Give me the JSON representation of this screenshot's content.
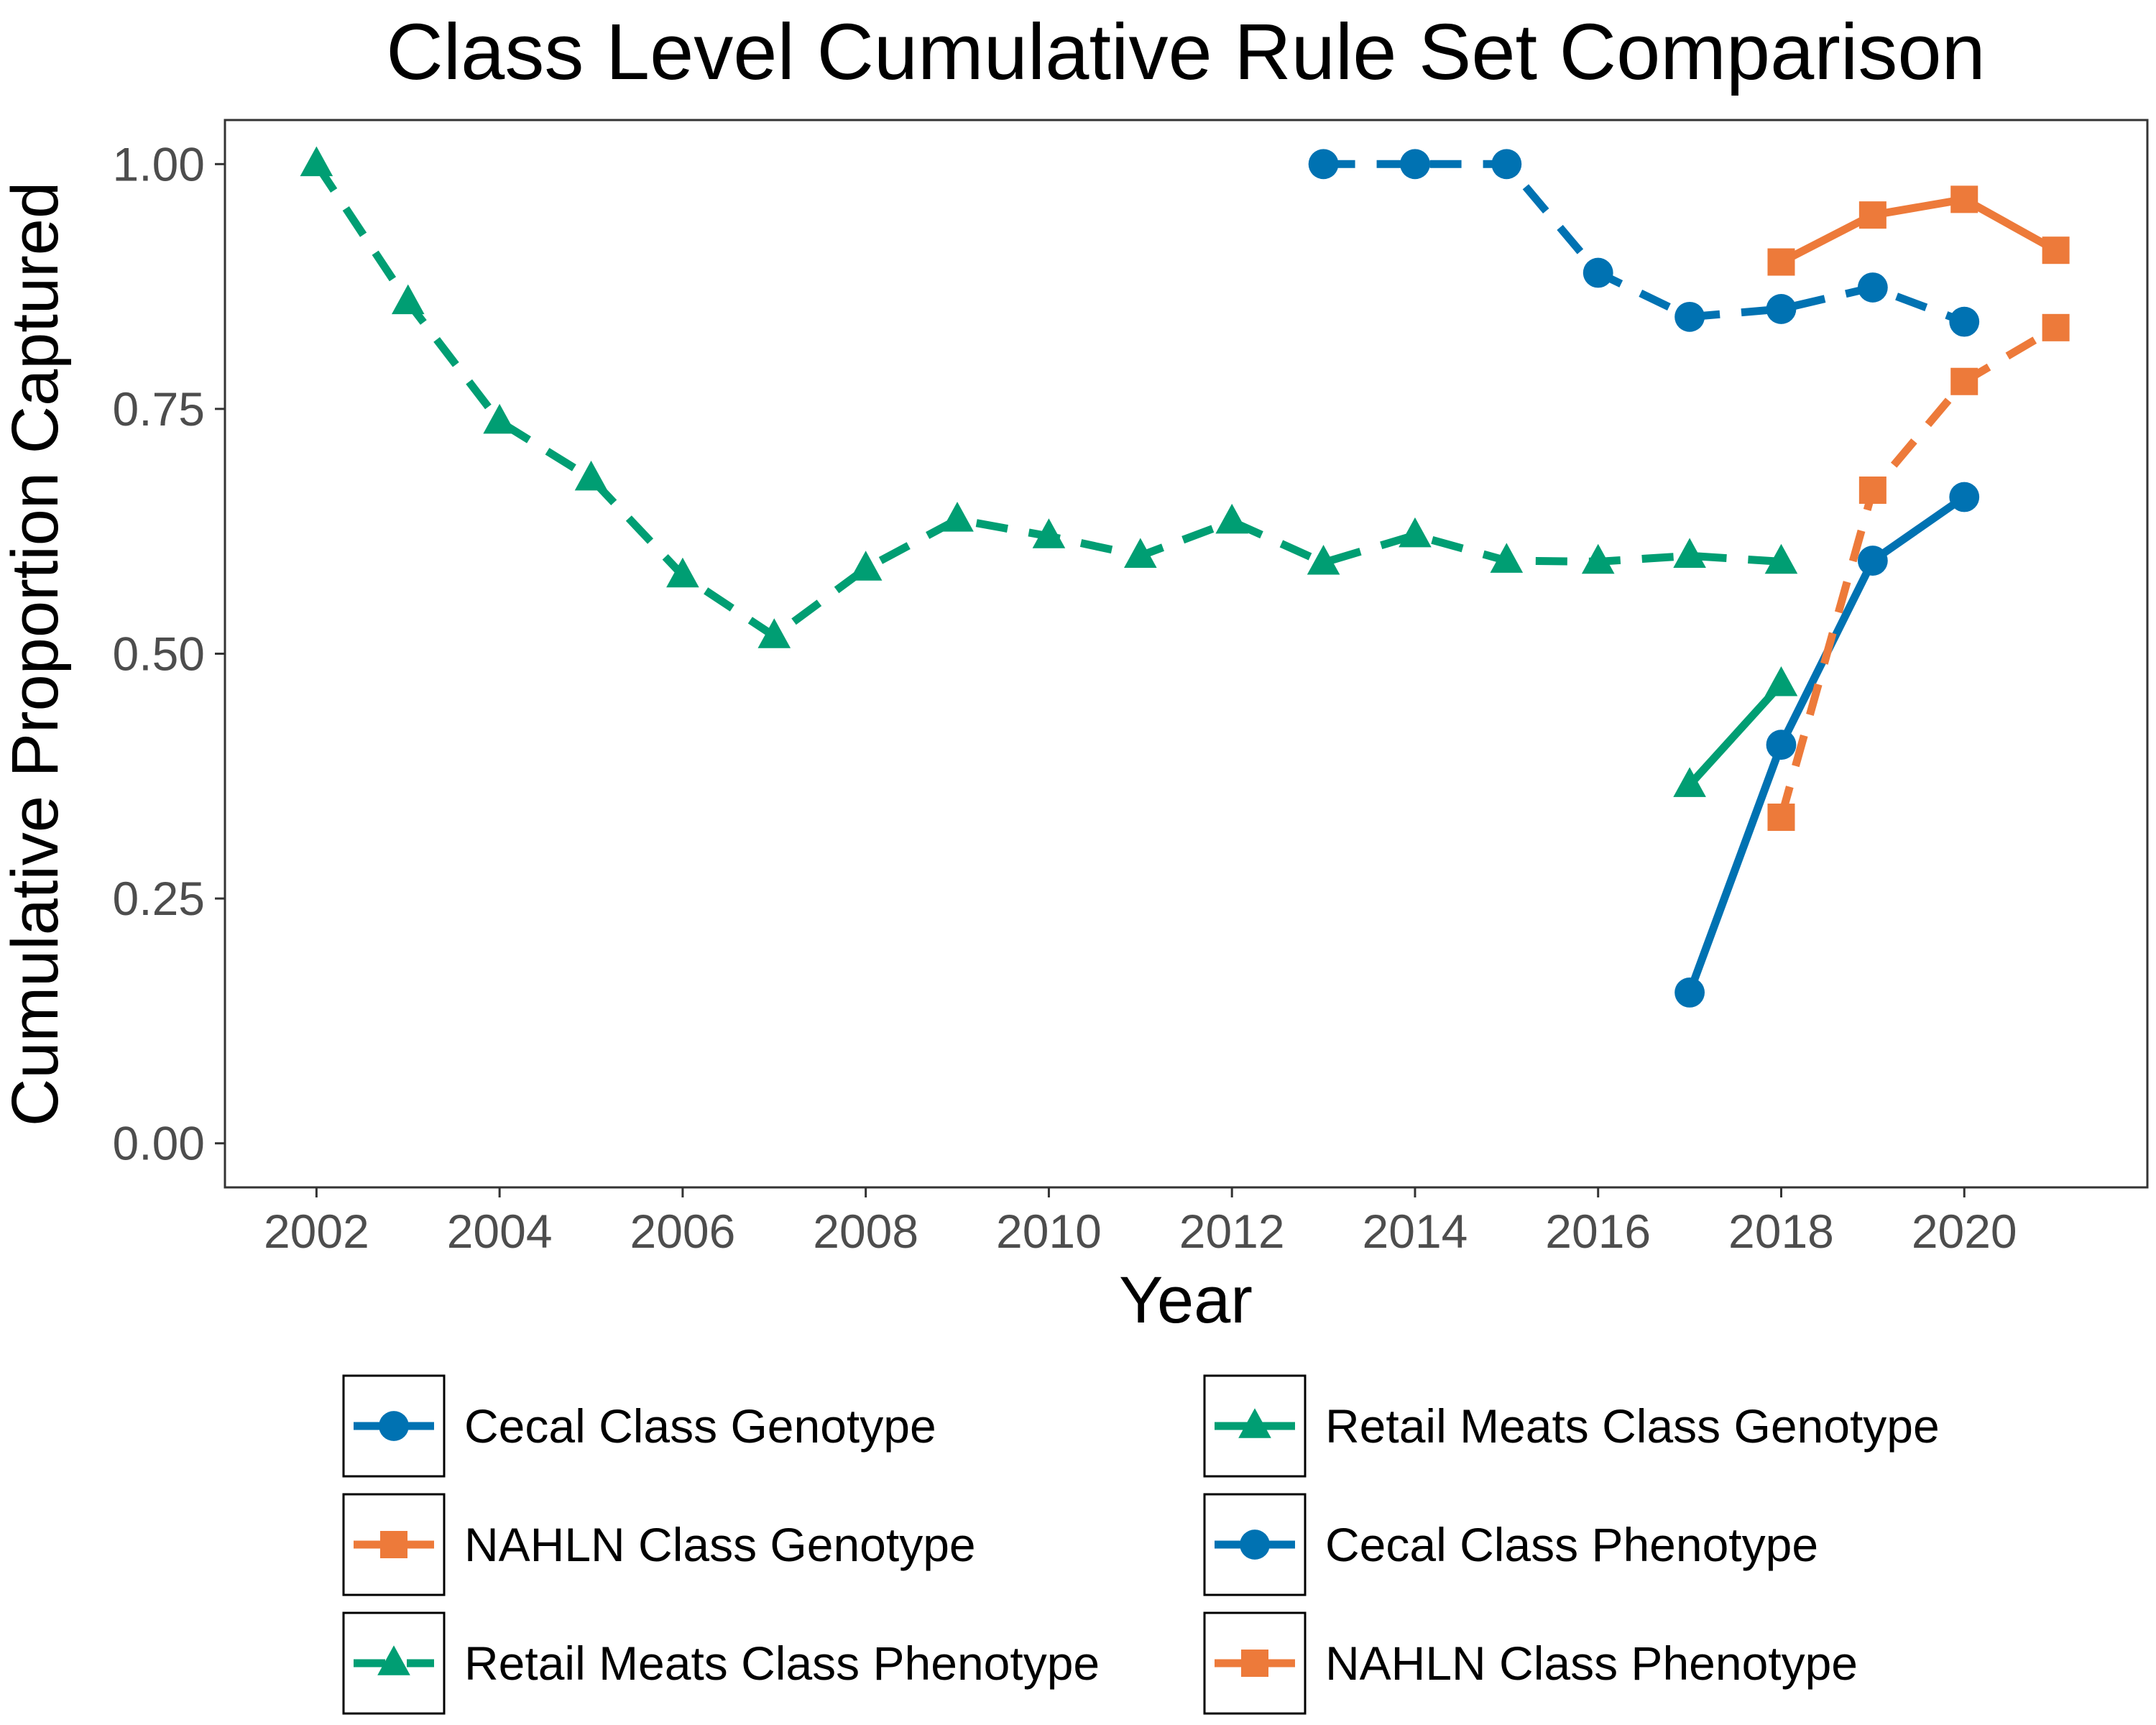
{
  "chart_data": {
    "type": "line",
    "title": "Class Level Cumulative Rule Set Comparison",
    "xlabel": "Year",
    "ylabel": "Cumulative Proportion Captured",
    "xlim": [
      2001.0,
      2022.0
    ],
    "ylim": [
      -0.045,
      1.045
    ],
    "x_ticks": [
      2002,
      2004,
      2006,
      2008,
      2010,
      2012,
      2014,
      2016,
      2018,
      2020
    ],
    "y_ticks": [
      0.0,
      0.25,
      0.5,
      0.75,
      1.0
    ],
    "y_tick_labels": [
      "0.00",
      "0.25",
      "0.50",
      "0.75",
      "1.00"
    ],
    "grid": false,
    "legend_position": "bottom",
    "series": [
      {
        "name": "Cecal Class Genotype",
        "color": "#0072B2",
        "line": "solid",
        "marker": "circle",
        "x": [
          2017,
          2018,
          2019,
          2020
        ],
        "y": [
          0.154,
          0.407,
          0.595,
          0.66
        ]
      },
      {
        "name": "NAHLN Class Genotype",
        "color": "#ED7A3A",
        "line": "solid",
        "marker": "square",
        "x": [
          2018,
          2019,
          2020,
          2021
        ],
        "y": [
          0.9,
          0.948,
          0.964,
          0.912
        ]
      },
      {
        "name": "Retail Meats Class Phenotype",
        "color": "#009E73",
        "line": "dashed",
        "marker": "triangle",
        "x": [
          2002,
          2003,
          2004,
          2005,
          2006,
          2007,
          2008,
          2009,
          2010,
          2011,
          2012,
          2013,
          2014,
          2015,
          2016,
          2017,
          2018
        ],
        "y": [
          1.0,
          0.859,
          0.737,
          0.679,
          0.58,
          0.518,
          0.587,
          0.637,
          0.62,
          0.6,
          0.635,
          0.593,
          0.621,
          0.595,
          0.594,
          0.6,
          0.594
        ]
      },
      {
        "name": "Retail Meats Class Genotype",
        "color": "#009E73",
        "line": "solid",
        "marker": "triangle",
        "x": [
          2017,
          2018
        ],
        "y": [
          0.366,
          0.469
        ]
      },
      {
        "name": "Cecal Class Phenotype",
        "color": "#0072B2",
        "line": "dashed",
        "marker": "circle",
        "x": [
          2013,
          2014,
          2015,
          2016,
          2017,
          2018,
          2019,
          2020
        ],
        "y": [
          1.0,
          1.0,
          1.0,
          0.889,
          0.844,
          0.852,
          0.874,
          0.839
        ]
      },
      {
        "name": "NAHLN Class Phenotype",
        "color": "#ED7A3A",
        "line": "dashed",
        "marker": "square",
        "x": [
          2018,
          2019,
          2020,
          2021
        ],
        "y": [
          0.333,
          0.667,
          0.778,
          0.833
        ]
      }
    ]
  }
}
